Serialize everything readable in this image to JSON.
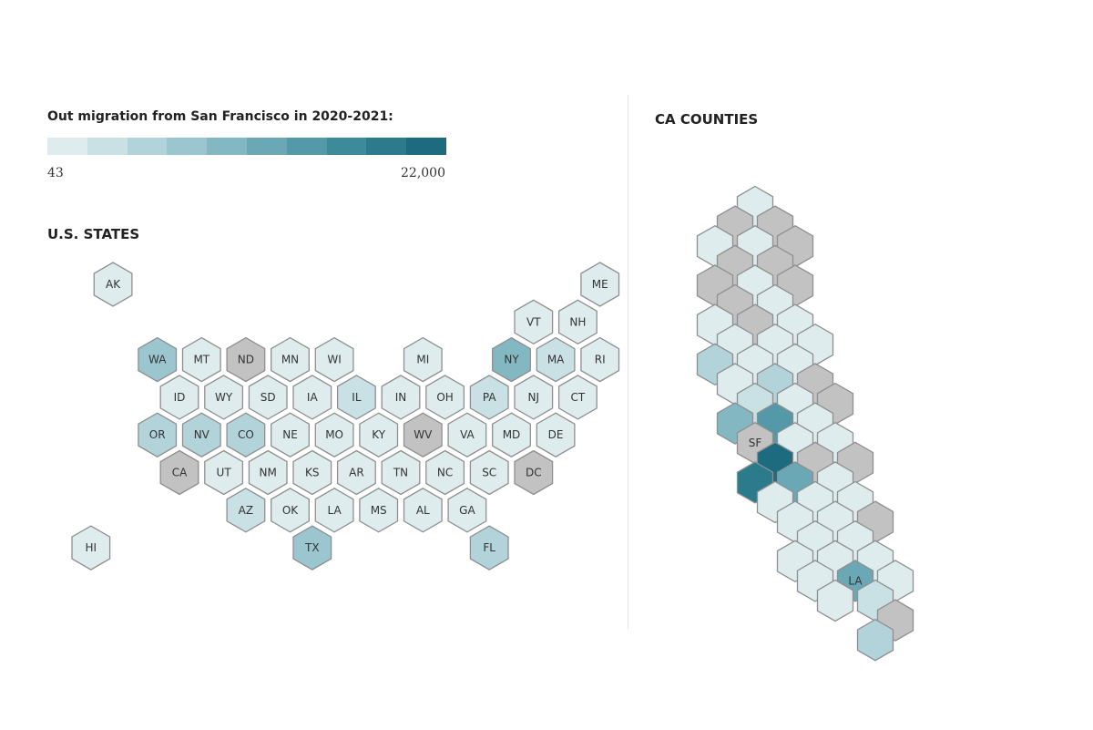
{
  "legend": {
    "title": "Out migration from San Francisco in 2020-2021:",
    "min_label": "43",
    "max_label": "22,000",
    "colors": [
      "#deecee",
      "#c9e0e4",
      "#b2d3d9",
      "#9bc6cf",
      "#83b7c2",
      "#6aa8b5",
      "#5399a8",
      "#3d8a9a",
      "#2b7b8c",
      "#1d6b7e"
    ],
    "no_data_color": "#c2c2c2"
  },
  "states_map": {
    "title": "U.S. STATES",
    "hexes": [
      {
        "label": "AK",
        "col": 1,
        "row": 0,
        "bin": 0
      },
      {
        "label": "ME",
        "col": 12,
        "row": 0,
        "bin": 0
      },
      {
        "label": "VT",
        "col": 10,
        "row": 1,
        "bin": 0
      },
      {
        "label": "NH",
        "col": 11,
        "row": 1,
        "bin": 0
      },
      {
        "label": "WA",
        "col": 2,
        "row": 2,
        "bin": 3
      },
      {
        "label": "MT",
        "col": 3,
        "row": 2,
        "bin": 0
      },
      {
        "label": "ND",
        "col": 4,
        "row": 2,
        "bin": -1
      },
      {
        "label": "MN",
        "col": 5,
        "row": 2,
        "bin": 0
      },
      {
        "label": "WI",
        "col": 6,
        "row": 2,
        "bin": 0
      },
      {
        "label": "MI",
        "col": 8,
        "row": 2,
        "bin": 0
      },
      {
        "label": "NY",
        "col": 10,
        "row": 2,
        "bin": 4
      },
      {
        "label": "MA",
        "col": 11,
        "row": 2,
        "bin": 1
      },
      {
        "label": "RI",
        "col": 12,
        "row": 2,
        "bin": 0
      },
      {
        "label": "ID",
        "col": 2,
        "row": 3,
        "bin": 0
      },
      {
        "label": "WY",
        "col": 3,
        "row": 3,
        "bin": 0
      },
      {
        "label": "SD",
        "col": 4,
        "row": 3,
        "bin": 0
      },
      {
        "label": "IA",
        "col": 5,
        "row": 3,
        "bin": 0
      },
      {
        "label": "IL",
        "col": 6,
        "row": 3,
        "bin": 1
      },
      {
        "label": "IN",
        "col": 7,
        "row": 3,
        "bin": 0
      },
      {
        "label": "OH",
        "col": 8,
        "row": 3,
        "bin": 0
      },
      {
        "label": "PA",
        "col": 9,
        "row": 3,
        "bin": 1
      },
      {
        "label": "NJ",
        "col": 10,
        "row": 3,
        "bin": 0
      },
      {
        "label": "CT",
        "col": 11,
        "row": 3,
        "bin": 0
      },
      {
        "label": "OR",
        "col": 2,
        "row": 4,
        "bin": 2
      },
      {
        "label": "NV",
        "col": 3,
        "row": 4,
        "bin": 2
      },
      {
        "label": "CO",
        "col": 4,
        "row": 4,
        "bin": 2
      },
      {
        "label": "NE",
        "col": 5,
        "row": 4,
        "bin": 0
      },
      {
        "label": "MO",
        "col": 6,
        "row": 4,
        "bin": 0
      },
      {
        "label": "KY",
        "col": 7,
        "row": 4,
        "bin": 0
      },
      {
        "label": "WV",
        "col": 8,
        "row": 4,
        "bin": -1
      },
      {
        "label": "VA",
        "col": 9,
        "row": 4,
        "bin": 0
      },
      {
        "label": "MD",
        "col": 10,
        "row": 4,
        "bin": 0
      },
      {
        "label": "DE",
        "col": 11,
        "row": 4,
        "bin": 0
      },
      {
        "label": "CA",
        "col": 2,
        "row": 5,
        "bin": -1
      },
      {
        "label": "UT",
        "col": 3,
        "row": 5,
        "bin": 0
      },
      {
        "label": "NM",
        "col": 4,
        "row": 5,
        "bin": 0
      },
      {
        "label": "KS",
        "col": 5,
        "row": 5,
        "bin": 0
      },
      {
        "label": "AR",
        "col": 6,
        "row": 5,
        "bin": 0
      },
      {
        "label": "TN",
        "col": 7,
        "row": 5,
        "bin": 0
      },
      {
        "label": "NC",
        "col": 8,
        "row": 5,
        "bin": 0
      },
      {
        "label": "SC",
        "col": 9,
        "row": 5,
        "bin": 0
      },
      {
        "label": "DC",
        "col": 10,
        "row": 5,
        "bin": -1
      },
      {
        "label": "AZ",
        "col": 4,
        "row": 6,
        "bin": 1
      },
      {
        "label": "OK",
        "col": 5,
        "row": 6,
        "bin": 0
      },
      {
        "label": "LA",
        "col": 6,
        "row": 6,
        "bin": 0
      },
      {
        "label": "MS",
        "col": 7,
        "row": 6,
        "bin": 0
      },
      {
        "label": "AL",
        "col": 8,
        "row": 6,
        "bin": 0
      },
      {
        "label": "GA",
        "col": 9,
        "row": 6,
        "bin": 0
      },
      {
        "label": "HI",
        "col": 0,
        "row": 7,
        "bin": 0
      },
      {
        "label": "TX",
        "col": 5,
        "row": 7,
        "bin": 3
      },
      {
        "label": "FL",
        "col": 9,
        "row": 7,
        "bin": 2
      }
    ]
  },
  "counties_map": {
    "title": "CA COUNTIES",
    "hexes": [
      {
        "label": "",
        "col": 2,
        "row": 0,
        "bin": 0
      },
      {
        "label": "",
        "col": 1,
        "row": 1,
        "bin": -1
      },
      {
        "label": "",
        "col": 3,
        "row": 1,
        "bin": -1
      },
      {
        "label": "",
        "col": 0,
        "row": 2,
        "bin": 0
      },
      {
        "label": "",
        "col": 2,
        "row": 2,
        "bin": 0
      },
      {
        "label": "",
        "col": 4,
        "row": 2,
        "bin": -1
      },
      {
        "label": "",
        "col": 1,
        "row": 3,
        "bin": -1
      },
      {
        "label": "",
        "col": 3,
        "row": 3,
        "bin": -1
      },
      {
        "label": "",
        "col": 0,
        "row": 4,
        "bin": -1
      },
      {
        "label": "",
        "col": 2,
        "row": 4,
        "bin": 0
      },
      {
        "label": "",
        "col": 4,
        "row": 4,
        "bin": -1
      },
      {
        "label": "",
        "col": 1,
        "row": 5,
        "bin": -1
      },
      {
        "label": "",
        "col": 3,
        "row": 5,
        "bin": 0
      },
      {
        "label": "",
        "col": 0,
        "row": 6,
        "bin": 0
      },
      {
        "label": "",
        "col": 2,
        "row": 6,
        "bin": -1
      },
      {
        "label": "",
        "col": 4,
        "row": 6,
        "bin": 0
      },
      {
        "label": "",
        "col": 1,
        "row": 7,
        "bin": 0
      },
      {
        "label": "",
        "col": 3,
        "row": 7,
        "bin": 0
      },
      {
        "label": "",
        "col": 5,
        "row": 7,
        "bin": 0
      },
      {
        "label": "",
        "col": 0,
        "row": 8,
        "bin": 2
      },
      {
        "label": "",
        "col": 2,
        "row": 8,
        "bin": 0
      },
      {
        "label": "",
        "col": 4,
        "row": 8,
        "bin": 0
      },
      {
        "label": "",
        "col": 1,
        "row": 9,
        "bin": 0
      },
      {
        "label": "",
        "col": 3,
        "row": 9,
        "bin": 2
      },
      {
        "label": "",
        "col": 5,
        "row": 9,
        "bin": -1
      },
      {
        "label": "",
        "col": 2,
        "row": 10,
        "bin": 1
      },
      {
        "label": "",
        "col": 4,
        "row": 10,
        "bin": 0
      },
      {
        "label": "",
        "col": 6,
        "row": 10,
        "bin": -1
      },
      {
        "label": "",
        "col": 1,
        "row": 11,
        "bin": 4
      },
      {
        "label": "",
        "col": 3,
        "row": 11,
        "bin": 6
      },
      {
        "label": "",
        "col": 5,
        "row": 11,
        "bin": 0
      },
      {
        "label": "SF",
        "col": 2,
        "row": 12,
        "bin": -1
      },
      {
        "label": "",
        "col": 4,
        "row": 12,
        "bin": 0
      },
      {
        "label": "",
        "col": 6,
        "row": 12,
        "bin": 0
      },
      {
        "label": "",
        "col": 3,
        "row": 13,
        "bin": 9
      },
      {
        "label": "",
        "col": 5,
        "row": 13,
        "bin": -1
      },
      {
        "label": "",
        "col": 7,
        "row": 13,
        "bin": -1
      },
      {
        "label": "",
        "col": 2,
        "row": 14,
        "bin": 8
      },
      {
        "label": "",
        "col": 4,
        "row": 14,
        "bin": 5
      },
      {
        "label": "",
        "col": 6,
        "row": 14,
        "bin": 0
      },
      {
        "label": "",
        "col": 3,
        "row": 15,
        "bin": 0
      },
      {
        "label": "",
        "col": 5,
        "row": 15,
        "bin": 0
      },
      {
        "label": "",
        "col": 7,
        "row": 15,
        "bin": 0
      },
      {
        "label": "",
        "col": 4,
        "row": 16,
        "bin": 0
      },
      {
        "label": "",
        "col": 6,
        "row": 16,
        "bin": 0
      },
      {
        "label": "",
        "col": 8,
        "row": 16,
        "bin": -1
      },
      {
        "label": "",
        "col": 5,
        "row": 17,
        "bin": 0
      },
      {
        "label": "",
        "col": 7,
        "row": 17,
        "bin": 0
      },
      {
        "label": "",
        "col": 4,
        "row": 18,
        "bin": 0
      },
      {
        "label": "",
        "col": 6,
        "row": 18,
        "bin": 0
      },
      {
        "label": "",
        "col": 8,
        "row": 18,
        "bin": 0
      },
      {
        "label": "",
        "col": 5,
        "row": 19,
        "bin": 0
      },
      {
        "label": "LA",
        "col": 7,
        "row": 19,
        "bin": 5
      },
      {
        "label": "",
        "col": 9,
        "row": 19,
        "bin": 0
      },
      {
        "label": "",
        "col": 6,
        "row": 20,
        "bin": 0
      },
      {
        "label": "",
        "col": 8,
        "row": 20,
        "bin": 1
      },
      {
        "label": "",
        "col": 9,
        "row": 21,
        "bin": -1
      },
      {
        "label": "",
        "col": 8,
        "row": 22,
        "bin": 2
      }
    ]
  }
}
